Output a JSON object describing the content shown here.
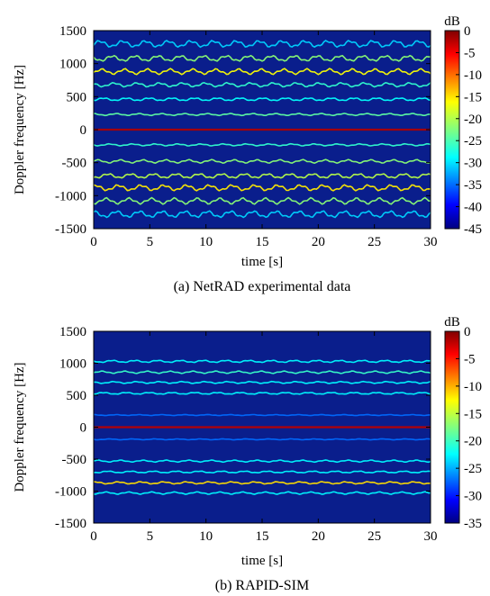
{
  "chart_data": [
    {
      "type": "heatmap",
      "title": "",
      "caption": "(a) NetRAD experimental data",
      "xlabel": "time [s]",
      "ylabel": "Doppler frequency [Hz]",
      "xlim": [
        0,
        30
      ],
      "ylim": [
        -1500,
        1500
      ],
      "xticks": [
        0,
        5,
        10,
        15,
        20,
        25,
        30
      ],
      "yticks": [
        1500,
        1000,
        500,
        0,
        -500,
        -1000,
        -1500
      ],
      "colorbar": {
        "label": "dB",
        "range": [
          -45,
          0
        ],
        "ticks": [
          0,
          -5,
          -10,
          -15,
          -20,
          -25,
          -30,
          -35,
          -40,
          -45
        ]
      },
      "background_color": "#0a1e8c",
      "bands": [
        {
          "freq": 0,
          "level_db": -2,
          "wiggle": 0
        },
        {
          "freq": 230,
          "level_db": -24,
          "wiggle": 12
        },
        {
          "freq": -230,
          "level_db": -26,
          "wiggle": 12
        },
        {
          "freq": 460,
          "level_db": -28,
          "wiggle": 18
        },
        {
          "freq": -480,
          "level_db": -22,
          "wiggle": 20
        },
        {
          "freq": 680,
          "level_db": -26,
          "wiggle": 25
        },
        {
          "freq": -700,
          "level_db": -20,
          "wiggle": 28
        },
        {
          "freq": 880,
          "level_db": -17,
          "wiggle": 32
        },
        {
          "freq": -880,
          "level_db": -16,
          "wiggle": 35
        },
        {
          "freq": 1080,
          "level_db": -22,
          "wiggle": 35
        },
        {
          "freq": -1080,
          "level_db": -22,
          "wiggle": 35
        },
        {
          "freq": 1300,
          "level_db": -30,
          "wiggle": 40
        },
        {
          "freq": -1280,
          "level_db": -30,
          "wiggle": 40
        }
      ]
    },
    {
      "type": "heatmap",
      "title": "",
      "caption": "(b) RAPID-SIM",
      "xlabel": "time [s]",
      "ylabel": "Doppler frequency [Hz]",
      "xlim": [
        0,
        30
      ],
      "ylim": [
        -1500,
        1500
      ],
      "xticks": [
        0,
        5,
        10,
        15,
        20,
        25,
        30
      ],
      "yticks": [
        1500,
        1000,
        500,
        0,
        -500,
        -1000,
        -1500
      ],
      "colorbar": {
        "label": "dB",
        "range": [
          -35,
          0
        ],
        "ticks": [
          0,
          -5,
          -10,
          -15,
          -20,
          -25,
          -30,
          -35
        ]
      },
      "background_color": "#0a1e8c",
      "bands": [
        {
          "freq": 0,
          "level_db": -2,
          "wiggle": 0
        },
        {
          "freq": 190,
          "level_db": -27,
          "wiggle": 6
        },
        {
          "freq": -190,
          "level_db": -27,
          "wiggle": 6
        },
        {
          "freq": 530,
          "level_db": -22,
          "wiggle": 12
        },
        {
          "freq": -530,
          "level_db": -22,
          "wiggle": 12
        },
        {
          "freq": 700,
          "level_db": -22,
          "wiggle": 12
        },
        {
          "freq": -700,
          "level_db": -22,
          "wiggle": 12
        },
        {
          "freq": 860,
          "level_db": -20,
          "wiggle": 14
        },
        {
          "freq": -870,
          "level_db": -12,
          "wiggle": 14
        },
        {
          "freq": 1030,
          "level_db": -22,
          "wiggle": 14
        },
        {
          "freq": -1030,
          "level_db": -22,
          "wiggle": 14
        }
      ]
    }
  ]
}
